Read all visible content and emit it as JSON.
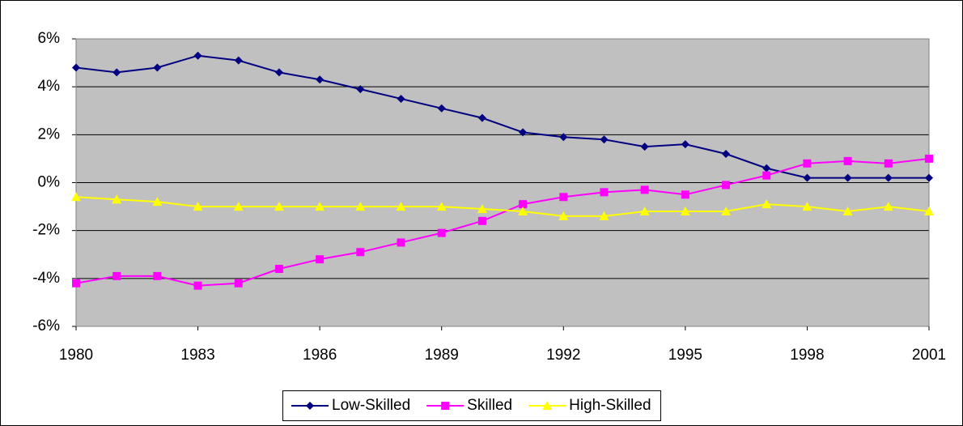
{
  "chart_data": {
    "type": "line",
    "x": [
      1980,
      1981,
      1982,
      1983,
      1984,
      1985,
      1986,
      1987,
      1988,
      1989,
      1990,
      1991,
      1992,
      1993,
      1994,
      1995,
      1996,
      1997,
      1998,
      1999,
      2000,
      2001
    ],
    "series": [
      {
        "name": "Low-Skilled",
        "color": "#000080",
        "marker": "diamond",
        "values": [
          4.8,
          4.6,
          4.8,
          5.3,
          5.1,
          4.6,
          4.3,
          3.9,
          3.5,
          3.1,
          2.7,
          2.1,
          1.9,
          1.8,
          1.5,
          1.6,
          1.2,
          0.6,
          0.2,
          0.2,
          0.2,
          0.2
        ]
      },
      {
        "name": "Skilled",
        "color": "#ff00ff",
        "marker": "square",
        "values": [
          -4.2,
          -3.9,
          -3.9,
          -4.3,
          -4.2,
          -3.6,
          -3.2,
          -2.9,
          -2.5,
          -2.1,
          -1.6,
          -0.9,
          -0.6,
          -0.4,
          -0.3,
          -0.5,
          -0.1,
          0.3,
          0.8,
          0.9,
          0.8,
          1.0
        ]
      },
      {
        "name": "High-Skilled",
        "color": "#ffff00",
        "marker": "triangle",
        "values": [
          -0.6,
          -0.7,
          -0.8,
          -1.0,
          -1.0,
          -1.0,
          -1.0,
          -1.0,
          -1.0,
          -1.0,
          -1.1,
          -1.2,
          -1.4,
          -1.4,
          -1.2,
          -1.2,
          -1.2,
          -0.9,
          -1.0,
          -1.2,
          -1.0,
          -1.2
        ]
      }
    ],
    "xlim": [
      1980,
      2001
    ],
    "xticks": [
      1980,
      1983,
      1986,
      1989,
      1992,
      1995,
      1998,
      2001
    ],
    "ylim": [
      -6,
      6
    ],
    "yticks": [
      {
        "value": -6,
        "label": "-6%"
      },
      {
        "value": -4,
        "label": "-4%"
      },
      {
        "value": -2,
        "label": "-2%"
      },
      {
        "value": 0,
        "label": "0%"
      },
      {
        "value": 2,
        "label": "2%"
      },
      {
        "value": 4,
        "label": "4%"
      },
      {
        "value": 6,
        "label": "6%"
      }
    ],
    "grid": true,
    "legend": "bottom",
    "plot_background": "#c0c0c0"
  }
}
